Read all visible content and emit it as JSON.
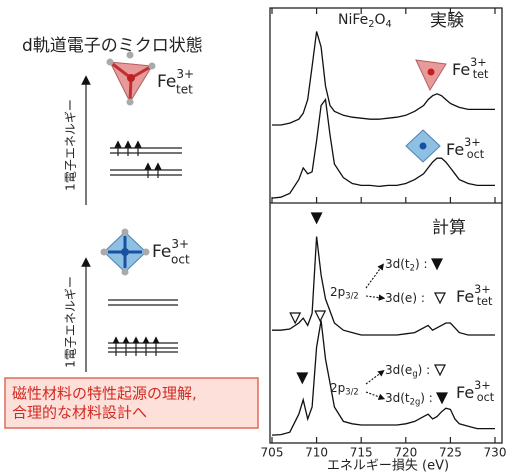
{
  "left_panel": {
    "title": "d軌道電子のミクロ状態",
    "states": [
      {
        "ion": {
          "base": "Fe",
          "sup": "3+",
          "sub": "tet"
        },
        "axis_label": "1電子エネルギー"
      },
      {
        "ion": {
          "base": "Fe",
          "sup": "3+",
          "sub": "oct"
        },
        "axis_label": "1電子エネルギー"
      }
    ],
    "conclusion": [
      "磁性材料の特性起源の理解,",
      "合理的な材料設計へ"
    ]
  },
  "chart_data": [
    {
      "type": "line",
      "title": "実験",
      "compound": {
        "base1": "NiFe",
        "sub1": "2",
        "base2": "O",
        "sub2": "4"
      },
      "x": [
        705,
        706,
        707,
        708,
        708.5,
        709,
        709.5,
        710,
        710.5,
        711,
        711.5,
        712,
        713,
        714,
        715,
        716,
        717,
        718,
        719,
        720,
        721,
        722,
        722.5,
        723,
        723.5,
        724,
        724.5,
        725,
        725.5,
        726,
        727,
        728,
        729,
        730
      ],
      "xlim": [
        705,
        730
      ],
      "ylim": [
        0,
        10
      ],
      "series": [
        {
          "label": {
            "base": "Fe",
            "sup": "3+",
            "sub": "tet"
          },
          "color": "#111111",
          "values": [
            4.0,
            4.0,
            4.1,
            4.3,
            4.6,
            5.3,
            7.0,
            8.8,
            8.0,
            6.0,
            5.0,
            4.7,
            4.5,
            4.4,
            4.35,
            4.3,
            4.3,
            4.35,
            4.4,
            4.5,
            4.7,
            5.0,
            5.3,
            5.5,
            5.6,
            5.5,
            5.3,
            5.1,
            5.0,
            4.9,
            4.8,
            4.8,
            4.8,
            4.8
          ]
        },
        {
          "label": {
            "base": "Fe",
            "sup": "3+",
            "sub": "oct"
          },
          "color": "#111111",
          "values": [
            0.25,
            0.3,
            0.5,
            1.2,
            1.8,
            1.5,
            1.6,
            3.2,
            5.0,
            5.3,
            3.5,
            2.0,
            1.3,
            1.0,
            0.9,
            0.9,
            0.85,
            0.9,
            0.9,
            1.0,
            1.2,
            1.5,
            1.8,
            2.1,
            2.3,
            2.3,
            2.1,
            1.8,
            1.5,
            1.2,
            1.0,
            0.9,
            0.9,
            0.9
          ]
        }
      ]
    },
    {
      "type": "line",
      "title": "計算",
      "xlabel": "エネルギー損失 (eV)",
      "x": [
        705,
        706,
        707,
        708,
        708.5,
        709,
        709.5,
        710,
        710.5,
        711,
        711.5,
        712,
        713,
        714,
        715,
        716,
        717,
        718,
        719,
        720,
        721,
        722,
        722.5,
        723,
        723.5,
        724,
        724.5,
        725,
        725.5,
        726,
        727,
        728,
        729,
        730
      ],
      "xlim": [
        705,
        730
      ],
      "xticks": [
        705,
        710,
        715,
        720,
        725,
        730
      ],
      "ylim": [
        0,
        10
      ],
      "series": [
        {
          "label": {
            "base": "Fe",
            "sup": "3+",
            "sub": "tet"
          },
          "color": "#111111",
          "edge": {
            "base": "2p",
            "sub": "3/2"
          },
          "transitions": [
            {
              "pre": "3d(t",
              "sub": "2",
              "post": ") :"
            },
            {
              "pre": "3d(e) :"
            }
          ],
          "values": [
            4.7,
            4.7,
            4.75,
            5.0,
            5.2,
            4.9,
            5.4,
            8.6,
            7.0,
            6.0,
            5.5,
            5.0,
            4.7,
            4.6,
            4.5,
            4.5,
            4.5,
            4.5,
            4.5,
            4.55,
            4.6,
            4.8,
            4.9,
            4.7,
            4.8,
            4.9,
            5.0,
            5.0,
            4.8,
            4.6,
            4.5,
            4.5,
            4.5,
            4.5
          ]
        },
        {
          "label": {
            "base": "Fe",
            "sup": "3+",
            "sub": "oct"
          },
          "color": "#111111",
          "edge": {
            "base": "2p",
            "sub": "3/2"
          },
          "transitions": [
            {
              "pre": "3d(e",
              "sub": "g",
              "post": ") :"
            },
            {
              "pre": "3d(t",
              "sub": "2g",
              "post": ") :"
            }
          ],
          "values": [
            0.33,
            0.35,
            0.45,
            1.2,
            1.8,
            1.0,
            1.5,
            4.0,
            5.1,
            3.5,
            2.5,
            1.5,
            0.9,
            0.8,
            0.75,
            0.75,
            0.75,
            0.75,
            0.75,
            0.8,
            0.9,
            1.1,
            1.2,
            1.0,
            1.1,
            1.3,
            1.45,
            1.4,
            1.0,
            0.8,
            0.7,
            0.6,
            0.6,
            0.6
          ]
        }
      ]
    }
  ]
}
